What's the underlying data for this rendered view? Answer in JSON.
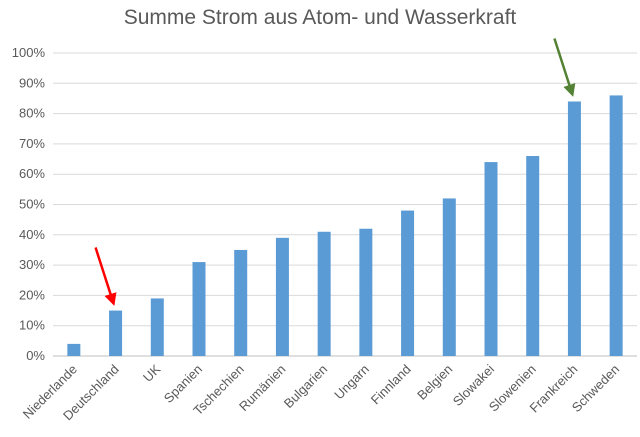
{
  "chart_data": {
    "type": "bar",
    "title": "Summe Strom aus Atom- und Wasserkraft",
    "xlabel": "",
    "ylabel": "",
    "categories": [
      "Niederlande",
      "Deutschland",
      "UK",
      "Spanien",
      "Tschechien",
      "Rumänien",
      "Bulgarien",
      "Ungarn",
      "Finnland",
      "Belgien",
      "Slowakei",
      "Slowenien",
      "Frankreich",
      "Schweden"
    ],
    "values": [
      4,
      15,
      19,
      31,
      35,
      39,
      41,
      42,
      48,
      52,
      64,
      66,
      84,
      86
    ],
    "ylim": [
      0,
      100
    ],
    "yticks": [
      "0%",
      "10%",
      "20%",
      "30%",
      "40%",
      "50%",
      "60%",
      "70%",
      "80%",
      "90%",
      "100%"
    ],
    "grid": true,
    "bar_color": "#5b9bd5",
    "annotations": [
      {
        "type": "arrow",
        "target": "Deutschland",
        "color": "#ff0000"
      },
      {
        "type": "arrow",
        "target": "Frankreich",
        "color": "#548235"
      }
    ]
  }
}
